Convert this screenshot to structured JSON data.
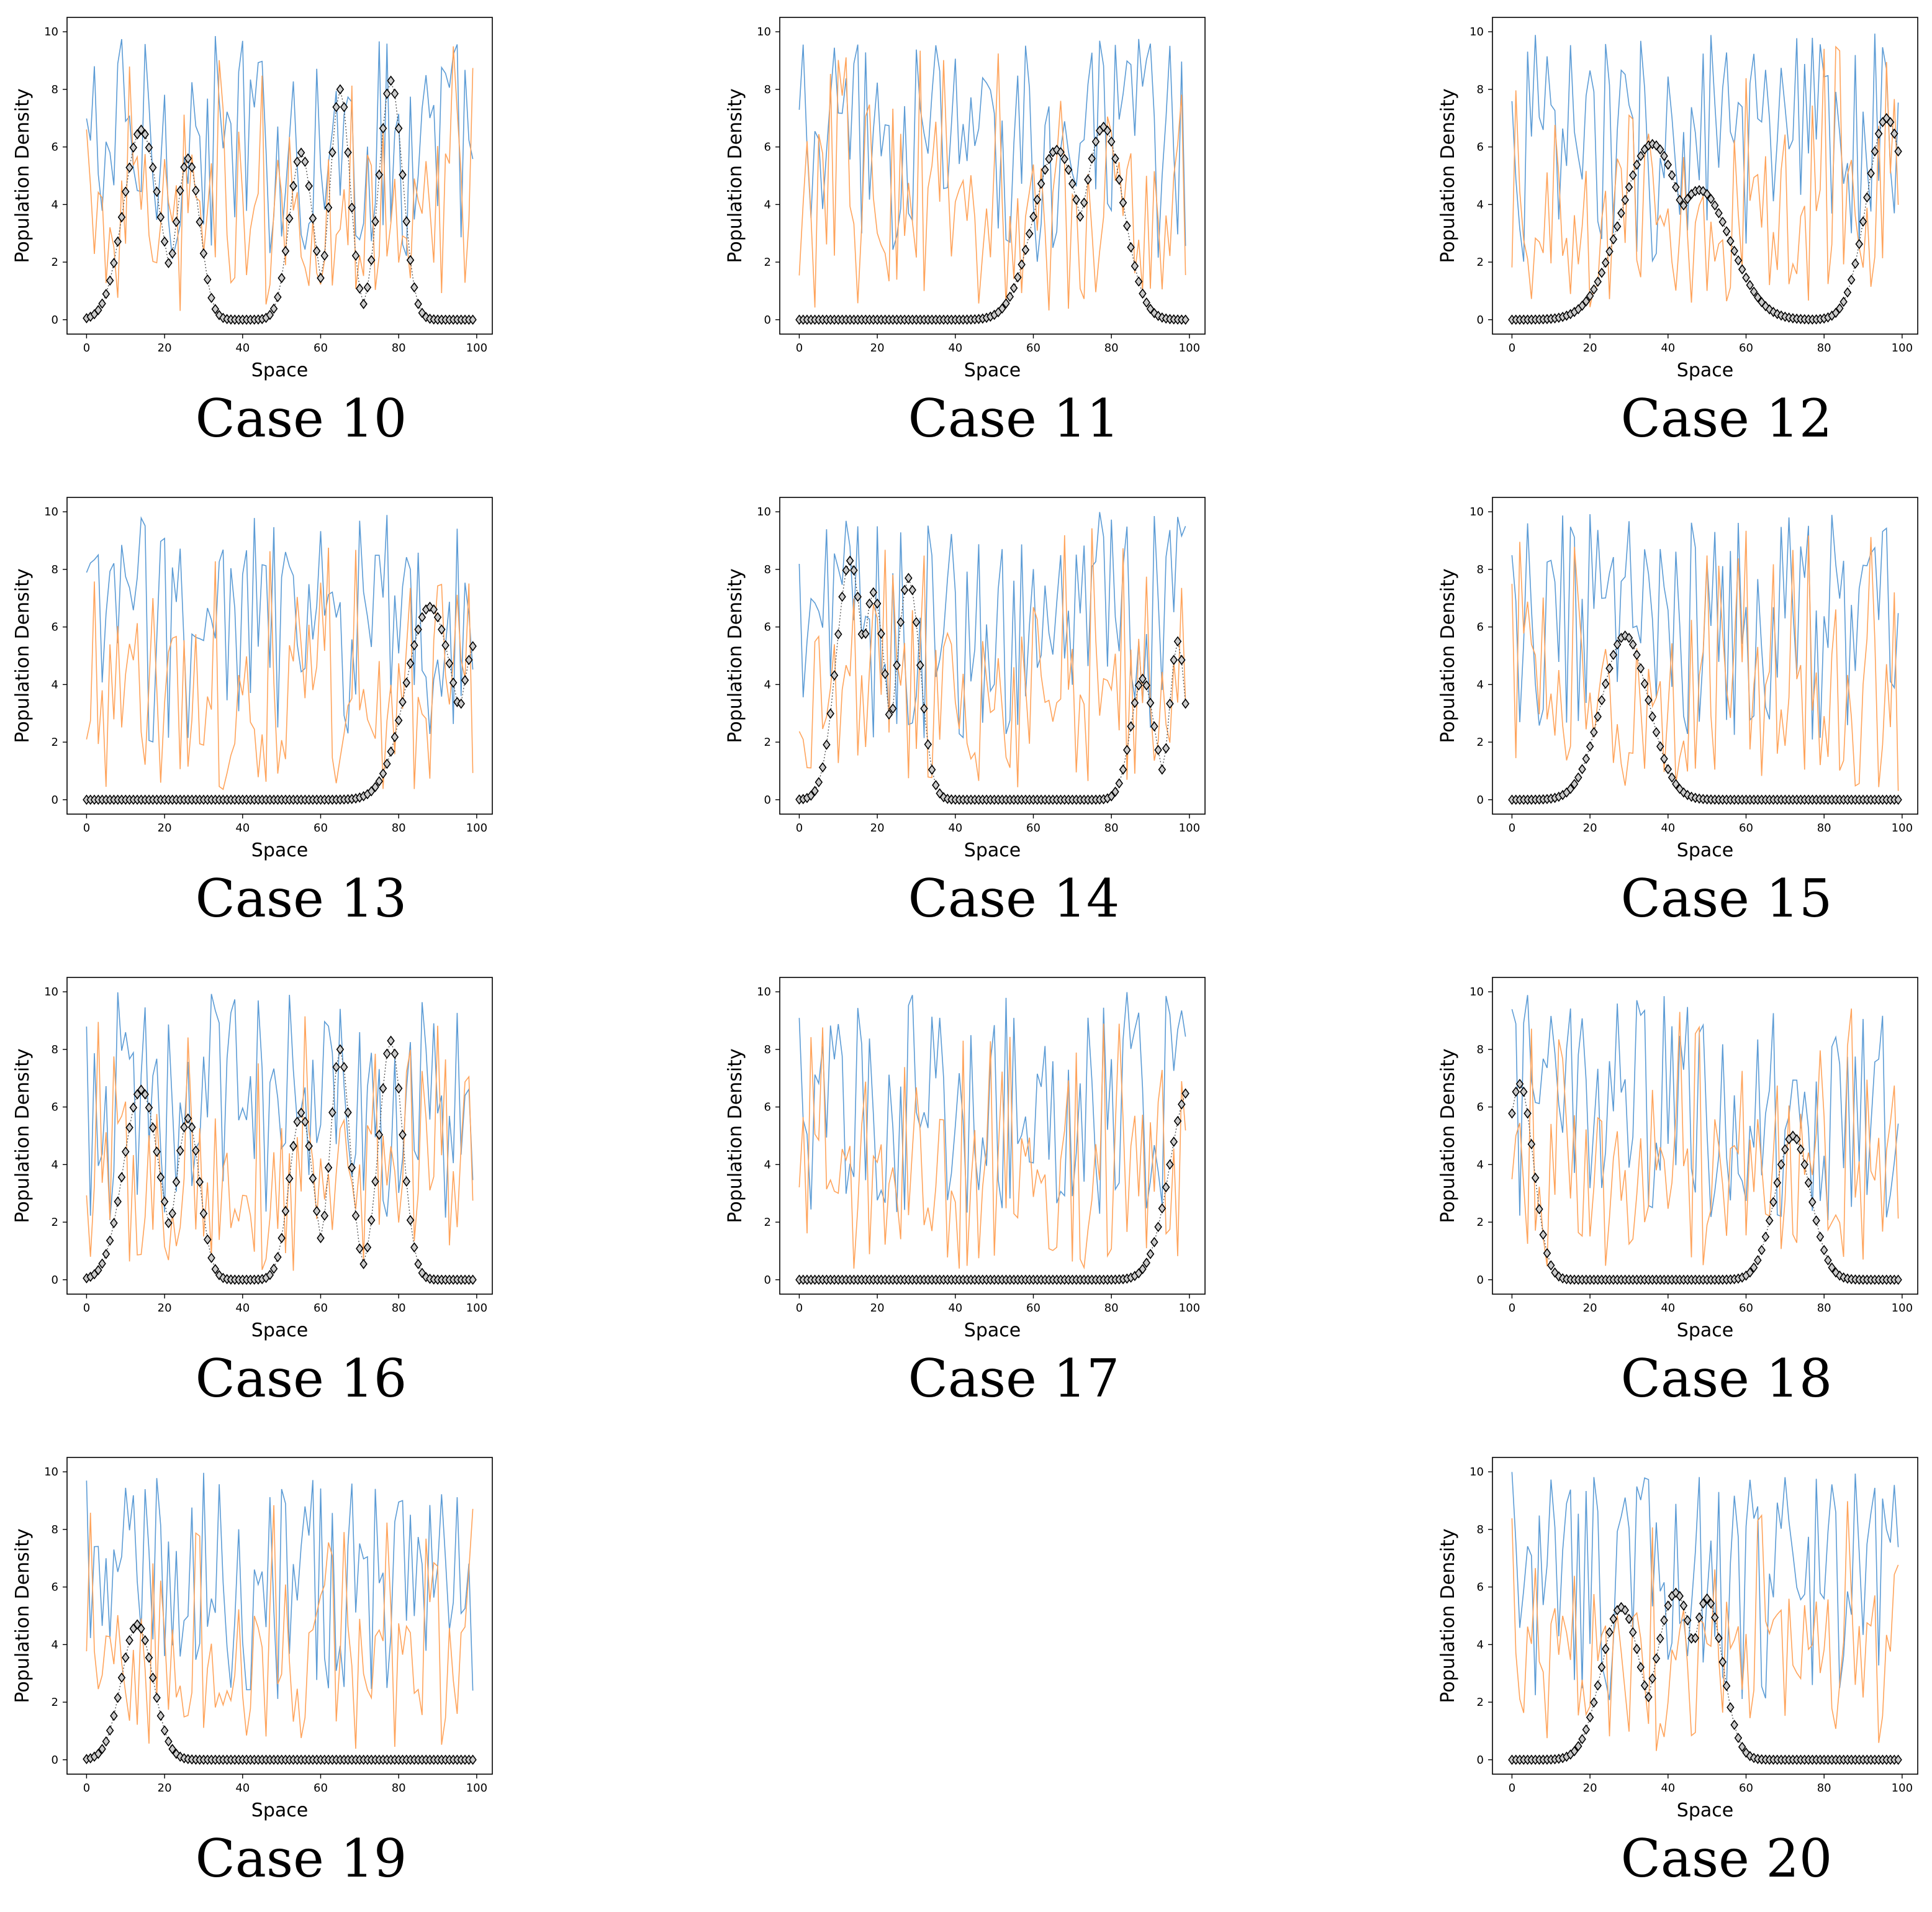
{
  "chart_data": [
    {
      "type": "line",
      "title": "Case 10",
      "profile": [
        [
          14,
          6.6,
          4.5
        ],
        [
          26,
          5.6,
          3
        ],
        [
          55,
          5.8,
          3
        ],
        [
          65,
          8.0,
          2.5
        ],
        [
          78,
          8.3,
          3
        ]
      ]
    },
    {
      "type": "line",
      "title": "Case 11",
      "profile": [
        [
          66,
          5.9,
          6
        ],
        [
          78,
          6.7,
          5
        ]
      ]
    },
    {
      "type": "line",
      "title": "Case 12",
      "profile": [
        [
          36,
          6.1,
          8
        ],
        [
          48,
          4.5,
          8
        ],
        [
          96,
          7.0,
          5
        ]
      ]
    },
    {
      "type": "line",
      "title": "Case 13",
      "profile": [
        [
          88,
          6.7,
          6
        ],
        [
          100,
          5.5,
          4
        ]
      ]
    },
    {
      "type": "line",
      "title": "Case 14",
      "profile": [
        [
          13,
          8.3,
          3.5
        ],
        [
          19,
          7.2,
          3
        ],
        [
          28,
          7.7,
          3
        ],
        [
          88,
          4.2,
          3
        ],
        [
          97,
          5.5,
          2
        ]
      ]
    },
    {
      "type": "line",
      "title": "Case 15",
      "profile": [
        [
          29,
          5.7,
          6
        ]
      ]
    },
    {
      "type": "line",
      "title": "Case 16",
      "profile": [
        [
          14,
          6.6,
          4.5
        ],
        [
          26,
          5.6,
          3
        ],
        [
          55,
          5.8,
          3
        ],
        [
          65,
          8.0,
          2.5
        ],
        [
          78,
          8.3,
          3
        ]
      ]
    },
    {
      "type": "line",
      "title": "Case 17",
      "profile": [
        [
          100,
          6.6,
          5
        ]
      ]
    },
    {
      "type": "line",
      "title": "Case 18",
      "profile": [
        [
          2,
          6.8,
          3.5
        ],
        [
          72,
          5.0,
          4.5
        ]
      ]
    },
    {
      "type": "line",
      "title": "Case 19",
      "profile": [
        [
          13,
          4.7,
          4
        ]
      ]
    },
    {
      "type": "line",
      "title": "Case 20",
      "profile": [
        [
          28,
          5.3,
          5
        ],
        [
          42,
          5.8,
          5
        ],
        [
          50,
          5.6,
          4
        ]
      ]
    }
  ],
  "axes": {
    "xlabel": "Space",
    "ylabel": "Population Density",
    "xlim": [
      0,
      100
    ],
    "ylim": [
      0,
      10
    ],
    "xticks": [
      0,
      20,
      40,
      60,
      80,
      100
    ],
    "yticks": [
      0,
      2,
      4,
      6,
      8,
      10
    ]
  },
  "colors": {
    "series_blue": "#5b9bd5",
    "series_orange": "#ffa35a",
    "profile_line": "#555555",
    "marker_edge": "#000000",
    "marker_fill": "#cccccc"
  }
}
